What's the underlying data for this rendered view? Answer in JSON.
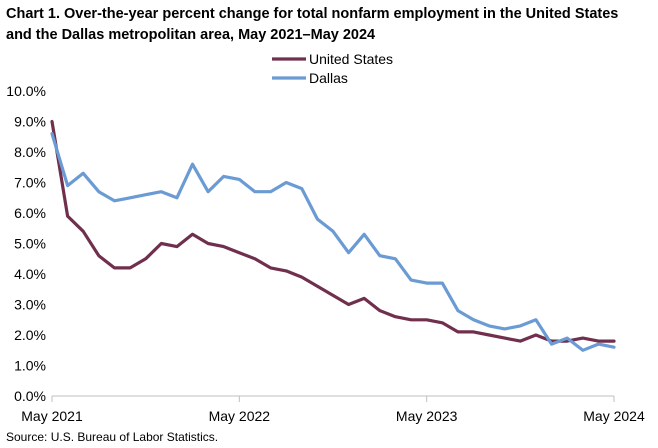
{
  "chart_data": {
    "type": "line",
    "title": "Chart 1. Over-the-year percent change for total nonfarm employment in the United States and the Dallas metropolitan area, May 2021–May 2024",
    "xlabel": "",
    "ylabel": "",
    "ylim": [
      0,
      10
    ],
    "yticks": [
      "0.0%",
      "1.0%",
      "2.0%",
      "3.0%",
      "4.0%",
      "5.0%",
      "6.0%",
      "7.0%",
      "8.0%",
      "9.0%",
      "10.0%"
    ],
    "xticks": [
      {
        "index": 0,
        "label": "May 2021"
      },
      {
        "index": 12,
        "label": "May 2022"
      },
      {
        "index": 24,
        "label": "May 2023"
      },
      {
        "index": 36,
        "label": "May 2024"
      }
    ],
    "grid": false,
    "legend_position": "top-center",
    "series": [
      {
        "name": "United States",
        "color": "#70304d",
        "values": [
          9.0,
          5.9,
          5.4,
          4.6,
          4.2,
          4.2,
          4.5,
          5.0,
          4.9,
          5.3,
          5.0,
          4.9,
          4.7,
          4.5,
          4.2,
          4.1,
          3.9,
          3.6,
          3.3,
          3.0,
          3.2,
          2.8,
          2.6,
          2.5,
          2.5,
          2.4,
          2.1,
          2.1,
          2.0,
          1.9,
          1.8,
          2.0,
          1.8,
          1.8,
          1.9,
          1.8,
          1.8
        ]
      },
      {
        "name": "Dallas",
        "color": "#6b9bd4",
        "values": [
          8.6,
          6.9,
          7.3,
          6.7,
          6.4,
          6.5,
          6.6,
          6.7,
          6.5,
          7.6,
          6.7,
          7.2,
          7.1,
          6.7,
          6.7,
          7.0,
          6.8,
          5.8,
          5.4,
          4.7,
          5.3,
          4.6,
          4.5,
          3.8,
          3.7,
          3.7,
          2.8,
          2.5,
          2.3,
          2.2,
          2.3,
          2.5,
          1.7,
          1.9,
          1.5,
          1.7,
          1.6
        ]
      }
    ]
  },
  "source": "Source: U.S. Bureau of Labor Statistics."
}
